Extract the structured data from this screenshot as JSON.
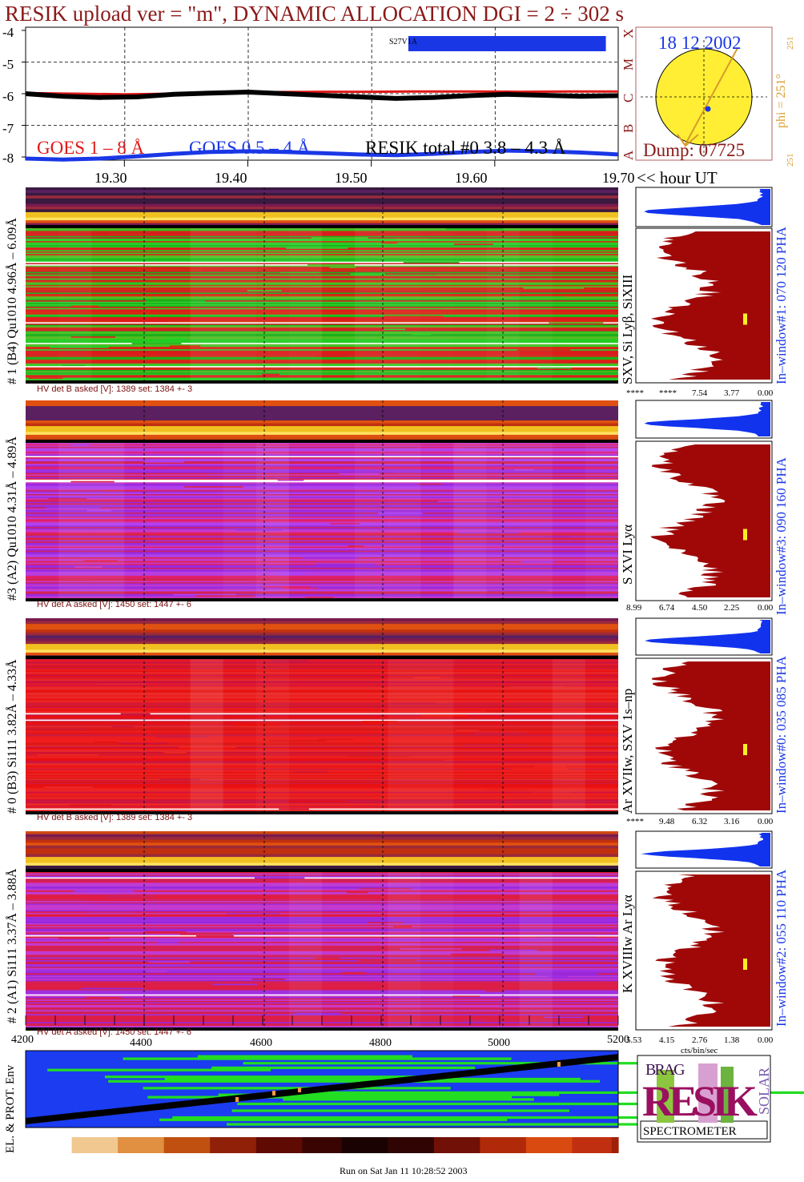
{
  "colors": {
    "title": "#8b1a1a",
    "goes18": "#e01818",
    "goes054": "#1a37e6",
    "resik": "#000000",
    "axis_text": "#000000",
    "sun_fill": "#ffee33",
    "sun_arrow": "#d89a2a",
    "orbit_box": "#b06060",
    "maroon": "#a00808",
    "hist_blue": "#1233ee",
    "phi_text": "#d8a030",
    "date_text": "#1a37e6",
    "dump_text": "#8b1a1a"
  },
  "header": {
    "title": "RESIK upload ver = \"m\", DYNAMIC ALLOCATION  DGI =   2 ÷ 302 s"
  },
  "lightcurve": {
    "legend_goes_18": "GOES 1 – 8 Å",
    "legend_goes_054": "GOES 0.5 – 4 Å",
    "legend_resik": "RESIK total #0  3.8 – 4.3 Å",
    "segment_label": "S27V1A",
    "y_ticks": [
      "-4",
      "-5",
      "-6",
      "-7",
      "-8"
    ],
    "goes_classes": [
      "X",
      "M",
      "C",
      "B",
      "A"
    ],
    "x_ticks": [
      "19.30",
      "19.40",
      "19.50",
      "19.60",
      "19.70"
    ],
    "x_unit": "<< hour UT"
  },
  "chart_data": {
    "type": "line",
    "title": "RESIK upload ver = \"m\", DYNAMIC ALLOCATION  DGI =   2 ÷ 302 s",
    "xlabel": "<< hour UT",
    "ylabel": "",
    "xlim": [
      19.22,
      19.7
    ],
    "ylim": [
      -8.1,
      -3.9
    ],
    "series": [
      {
        "name": "GOES 1 – 8 Å",
        "x": [
          19.22,
          19.26,
          19.3,
          19.34,
          19.38,
          19.42,
          19.46,
          19.5,
          19.54,
          19.58,
          19.62,
          19.66,
          19.7
        ],
        "values": [
          -5.98,
          -6.0,
          -6.02,
          -6.0,
          -5.97,
          -5.95,
          -5.94,
          -5.94,
          -5.93,
          -5.93,
          -5.94,
          -5.93,
          -5.93
        ]
      },
      {
        "name": "GOES 0.5 – 4 Å",
        "x": [
          19.22,
          19.25,
          19.28,
          19.31,
          19.34,
          19.37,
          19.4,
          19.43,
          19.46,
          19.49,
          19.52,
          19.55,
          19.58,
          19.61,
          19.64,
          19.67,
          19.7
        ],
        "values": [
          -8.05,
          -8.08,
          -8.05,
          -7.98,
          -7.9,
          -7.84,
          -7.82,
          -7.84,
          -7.88,
          -7.92,
          -7.94,
          -7.9,
          -7.84,
          -7.8,
          -7.82,
          -7.86,
          -7.92
        ]
      },
      {
        "name": "RESIK total #0  3.8 – 4.3 Å",
        "x": [
          19.22,
          19.25,
          19.28,
          19.31,
          19.34,
          19.37,
          19.4,
          19.43,
          19.46,
          19.49,
          19.52,
          19.55,
          19.58,
          19.61,
          19.64,
          19.67,
          19.7
        ],
        "values": [
          -6.0,
          -6.08,
          -6.12,
          -6.1,
          -6.02,
          -5.98,
          -5.95,
          -6.0,
          -6.05,
          -6.1,
          -6.15,
          -6.12,
          -6.06,
          -6.02,
          -6.05,
          -6.08,
          -6.06
        ]
      }
    ],
    "segment": {
      "label": "S27V1A",
      "x_start": 19.53,
      "x_end": 19.69
    }
  },
  "orbit": {
    "date": "18 12 2002",
    "dump": "Dump: 07725",
    "phi": "phi = 251°",
    "phi_small_top": "251",
    "phi_small_bottom": "251"
  },
  "spectro": [
    {
      "y_label": "# 1 (B4) Qu1010 4.96Å – 6.09Å",
      "hv": "HV det B asked [V]:  1389 set:  1384 +-    3",
      "line_label": "SXV, Si Lyβ, SiXIII",
      "window_label": "In–window#1:  070 120 PHA",
      "hist_ticks": [
        "****",
        "****",
        "7.54",
        "3.77",
        "0.00"
      ]
    },
    {
      "y_label": "#3 (A2) Qu1010  4.31Å – 4.89Å",
      "hv": "HV det A asked [V]:  1450 set:  1447 +-    6",
      "line_label": "S XVI Lyα",
      "window_label": "In–window#3:  090 160 PHA",
      "hist_ticks": [
        "8.99",
        "6.74",
        "4.50",
        "2.25",
        "0.00"
      ]
    },
    {
      "y_label": "# 0 (B3) Si111  3.82Å – 4.33Å",
      "hv": "HV det B asked [V]:  1389 set:  1384 +-    3",
      "line_label": "Ar XVIIw,  SXV 1s–np",
      "window_label": "In–window#0:  035 085 PHA",
      "hist_ticks": [
        "****",
        "9.48",
        "6.32",
        "3.16",
        "0.00"
      ]
    },
    {
      "y_label": "# 2 (A1) Si111  3.37Å – 3.88Å",
      "hv": "HV det A asked [V]:  1450 set:  1447 +-    6",
      "line_label": "K XVIIIw  Ar Lyα",
      "window_label": "In–window#2:  055 110 PHA",
      "hist_ticks": [
        "5.53",
        "4.15",
        "2.76",
        "1.38",
        "0.00"
      ]
    }
  ],
  "bottom_axis": {
    "ticks": [
      "4200",
      "4400",
      "4600",
      "4800",
      "5000",
      "5200"
    ],
    "hist_unit": "cts/bin/sec",
    "env_label": "EL. & PROT. Env"
  },
  "logo": {
    "letters": "RESIK",
    "prefix": "BRAG",
    "suffix": "SOLAR",
    "caption": "SPECTROMETER"
  },
  "footer": {
    "run": "Run on Sat Jan 11 10:28:52 2003"
  }
}
